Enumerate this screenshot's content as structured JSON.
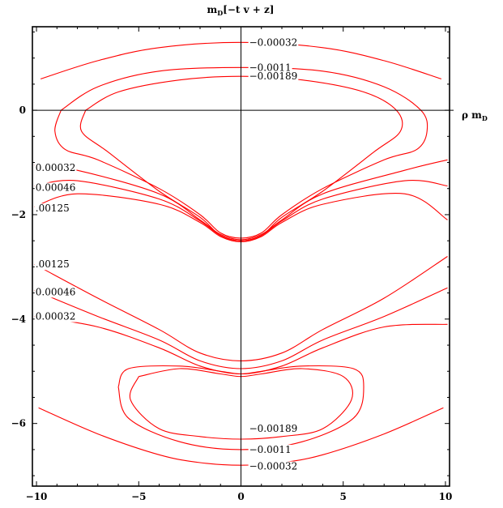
{
  "chart_data": {
    "type": "contour",
    "title": "m_D[−t v + z]",
    "title_parts": {
      "m": "m",
      "sub": "D",
      "rest": "[−t v + z]"
    },
    "xlabel": "ρ m_D",
    "xlabel_parts": {
      "rho": "ρ m",
      "sub": "D"
    },
    "ylabel": "",
    "xlim": [
      -10.2,
      10.2
    ],
    "ylim": [
      -7.2,
      1.6
    ],
    "x_ticks": [
      -10,
      -5,
      0,
      5,
      10
    ],
    "x_tick_labels": [
      "−10",
      "−5",
      "0",
      "5",
      "10"
    ],
    "y_ticks": [
      0,
      -2,
      -4,
      -6
    ],
    "y_tick_labels": [
      "0",
      "−2",
      "−4",
      "−6"
    ],
    "color": "#ff0000",
    "grid": false,
    "contours": [
      {
        "level": "-0.00032",
        "points": [
          [
            -9.8,
            0.6
          ],
          [
            -7,
            0.95
          ],
          [
            -4,
            1.2
          ],
          [
            0,
            1.3
          ],
          [
            4,
            1.2
          ],
          [
            7,
            0.95
          ],
          [
            9.8,
            0.6
          ]
        ]
      },
      {
        "level": "-0.0011",
        "points": [
          [
            -8.8,
            0
          ],
          [
            -9.1,
            -0.4
          ],
          [
            -8.6,
            -0.75
          ],
          [
            -7,
            -0.95
          ],
          [
            -4,
            -1.5
          ],
          [
            -2,
            -2
          ],
          [
            -1,
            -2.35
          ],
          [
            0,
            -2.45
          ],
          [
            1,
            -2.35
          ],
          [
            2,
            -2
          ],
          [
            4,
            -1.5
          ],
          [
            7,
            -0.95
          ],
          [
            8.6,
            -0.75
          ],
          [
            9.1,
            -0.4
          ],
          [
            8.8,
            0
          ],
          [
            7,
            0.45
          ],
          [
            4,
            0.75
          ],
          [
            0,
            0.82
          ],
          [
            -4,
            0.75
          ],
          [
            -7,
            0.45
          ],
          [
            -8.8,
            0
          ]
        ]
      },
      {
        "level": "-0.00189",
        "points": [
          [
            -7.6,
            0
          ],
          [
            -7.8,
            -0.4
          ],
          [
            -6.5,
            -0.8
          ],
          [
            -4,
            -1.55
          ],
          [
            -2,
            -2.05
          ],
          [
            -1,
            -2.4
          ],
          [
            0,
            -2.5
          ],
          [
            1,
            -2.4
          ],
          [
            2,
            -2.05
          ],
          [
            4,
            -1.55
          ],
          [
            6.5,
            -0.8
          ],
          [
            7.8,
            -0.4
          ],
          [
            7.6,
            0
          ],
          [
            6,
            0.35
          ],
          [
            3,
            0.58
          ],
          [
            0,
            0.65
          ],
          [
            -3,
            0.58
          ],
          [
            -6,
            0.35
          ],
          [
            -7.6,
            0
          ]
        ]
      },
      {
        "level": "-0.00032",
        "points": [
          [
            -10.1,
            -1.05
          ],
          [
            -8,
            -1.15
          ],
          [
            -4,
            -1.6
          ],
          [
            -2,
            -2.1
          ],
          [
            -1,
            -2.38
          ],
          [
            0,
            -2.48
          ],
          [
            1,
            -2.38
          ],
          [
            2,
            -2.1
          ],
          [
            4,
            -1.6
          ],
          [
            8,
            -1.15
          ],
          [
            10.1,
            -0.95
          ]
        ]
      },
      {
        "level": "-0.00046",
        "points": [
          [
            -10.1,
            -1.45
          ],
          [
            -8,
            -1.35
          ],
          [
            -4,
            -1.7
          ],
          [
            -2,
            -2.12
          ],
          [
            -1,
            -2.4
          ],
          [
            0,
            -2.5
          ],
          [
            1,
            -2.4
          ],
          [
            2,
            -2.12
          ],
          [
            4,
            -1.7
          ],
          [
            8,
            -1.35
          ],
          [
            10.1,
            -1.45
          ]
        ]
      },
      {
        "level": "-0.00125",
        "points": [
          [
            -10.1,
            -1.85
          ],
          [
            -8,
            -1.6
          ],
          [
            -4,
            -1.8
          ],
          [
            -2,
            -2.15
          ],
          [
            -1,
            -2.42
          ],
          [
            0,
            -2.52
          ],
          [
            1,
            -2.42
          ],
          [
            2,
            -2.15
          ],
          [
            4,
            -1.8
          ],
          [
            8,
            -1.6
          ],
          [
            10.1,
            -2.1
          ]
        ]
      },
      {
        "level": "-0.00125",
        "points": [
          [
            -10.1,
            -2.95
          ],
          [
            -7,
            -3.6
          ],
          [
            -4,
            -4.2
          ],
          [
            -2,
            -4.65
          ],
          [
            0,
            -4.8
          ],
          [
            2,
            -4.65
          ],
          [
            4,
            -4.2
          ],
          [
            7,
            -3.6
          ],
          [
            10.1,
            -2.8
          ]
        ]
      },
      {
        "level": "-0.00046",
        "points": [
          [
            -10.1,
            -3.45
          ],
          [
            -7,
            -3.95
          ],
          [
            -4,
            -4.4
          ],
          [
            -2,
            -4.8
          ],
          [
            0,
            -4.95
          ],
          [
            2,
            -4.8
          ],
          [
            4,
            -4.4
          ],
          [
            7,
            -3.95
          ],
          [
            10.1,
            -3.4
          ]
        ]
      },
      {
        "level": "-0.00032",
        "points": [
          [
            -10.1,
            -3.95
          ],
          [
            -7,
            -4.15
          ],
          [
            -4,
            -4.55
          ],
          [
            -2,
            -4.9
          ],
          [
            0,
            -5.05
          ],
          [
            2,
            -4.9
          ],
          [
            4,
            -4.55
          ],
          [
            7,
            -4.15
          ],
          [
            10.1,
            -4.1
          ]
        ]
      },
      {
        "level": "-0.00189",
        "points": [
          [
            -5,
            -5.1
          ],
          [
            -3,
            -4.95
          ],
          [
            -1,
            -5.05
          ],
          [
            0,
            -5.1
          ],
          [
            1,
            -5.05
          ],
          [
            3,
            -4.95
          ],
          [
            5,
            -5.1
          ],
          [
            5.4,
            -5.55
          ],
          [
            4,
            -6.1
          ],
          [
            2,
            -6.25
          ],
          [
            0,
            -6.3
          ],
          [
            -2,
            -6.25
          ],
          [
            -4,
            -6.1
          ],
          [
            -5.4,
            -5.55
          ],
          [
            -5,
            -5.1
          ]
        ]
      },
      {
        "level": "-0.0011",
        "points": [
          [
            -6,
            -5.3
          ],
          [
            -5.5,
            -4.95
          ],
          [
            -3,
            -4.9
          ],
          [
            -1,
            -5.0
          ],
          [
            0,
            -5.05
          ],
          [
            1,
            -5.0
          ],
          [
            3,
            -4.9
          ],
          [
            5.5,
            -4.95
          ],
          [
            6,
            -5.3
          ],
          [
            5.5,
            -5.9
          ],
          [
            3,
            -6.35
          ],
          [
            0,
            -6.5
          ],
          [
            -3,
            -6.35
          ],
          [
            -5.5,
            -5.9
          ],
          [
            -6,
            -5.3
          ]
        ]
      },
      {
        "level": "-0.00032",
        "points": [
          [
            -9.9,
            -5.7
          ],
          [
            -7,
            -6.2
          ],
          [
            -4,
            -6.6
          ],
          [
            -2,
            -6.75
          ],
          [
            0,
            -6.8
          ],
          [
            2,
            -6.75
          ],
          [
            4,
            -6.6
          ],
          [
            7,
            -6.2
          ],
          [
            9.9,
            -5.7
          ]
        ]
      }
    ],
    "contour_labels": [
      {
        "text": "−0.00032",
        "x": 0.4,
        "y": 1.3
      },
      {
        "text": "−0.0011",
        "x": 0.4,
        "y": 0.82
      },
      {
        "text": "−0.00189",
        "x": 0.4,
        "y": 0.65
      },
      {
        "text": "0.00032",
        "x": -10.05,
        "y": -1.1
      },
      {
        "text": "0.00046",
        "x": -10.05,
        "y": -1.48
      },
      {
        "text": ".00125",
        "x": -10.05,
        "y": -1.88
      },
      {
        "text": ".00125",
        "x": -10.05,
        "y": -2.95
      },
      {
        "text": "0.00046",
        "x": -10.05,
        "y": -3.48
      },
      {
        "text": "0.00032",
        "x": -10.05,
        "y": -3.95
      },
      {
        "text": "−0.00189",
        "x": 0.4,
        "y": -6.1
      },
      {
        "text": "−0.0011",
        "x": 0.4,
        "y": -6.5
      },
      {
        "text": "−0.00032",
        "x": 0.4,
        "y": -6.82
      }
    ]
  }
}
